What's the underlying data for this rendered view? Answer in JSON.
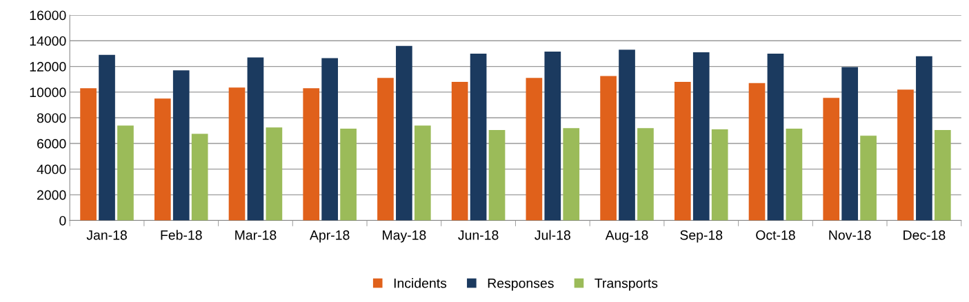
{
  "chart_data": {
    "type": "bar",
    "categories": [
      "Jan-18",
      "Feb-18",
      "Mar-18",
      "Apr-18",
      "May-18",
      "Jun-18",
      "Jul-18",
      "Aug-18",
      "Sep-18",
      "Oct-18",
      "Nov-18",
      "Dec-18"
    ],
    "series": [
      {
        "name": "Incidents",
        "color": "#e0611b",
        "values": [
          10300,
          9500,
          10350,
          10300,
          11100,
          10800,
          11100,
          11250,
          10800,
          10700,
          9550,
          10200
        ]
      },
      {
        "name": "Responses",
        "color": "#1b3a5f",
        "values": [
          12900,
          11700,
          12700,
          12650,
          13600,
          13000,
          13150,
          13300,
          13100,
          13000,
          11950,
          12800
        ]
      },
      {
        "name": "Transports",
        "color": "#9bbb59",
        "values": [
          7400,
          6750,
          7250,
          7150,
          7400,
          7050,
          7200,
          7200,
          7100,
          7150,
          6600,
          7050
        ]
      }
    ],
    "ylim": [
      0,
      16000
    ],
    "yticks": [
      0,
      2000,
      4000,
      6000,
      8000,
      10000,
      12000,
      14000,
      16000
    ],
    "grid": "y",
    "legend": "bottom"
  }
}
